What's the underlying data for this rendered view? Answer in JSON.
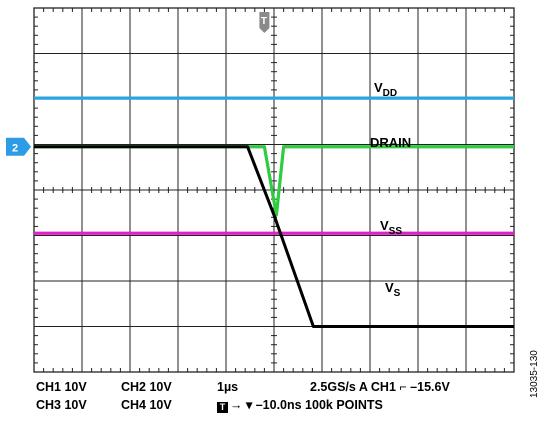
{
  "chart_data": {
    "type": "line",
    "grid": true,
    "grid_divisions": {
      "x": 10,
      "y": 8
    },
    "x_unit_per_div": "1µs",
    "trigger_marker": "T",
    "channel_marker": "2",
    "colors": {
      "vdd": "#2aa5e0",
      "drain": "#2ecc40",
      "vss": "#e020c8",
      "vs": "#000000",
      "grid": "#222222",
      "marker": "#2e9be6"
    },
    "series": [
      {
        "name": "VDD",
        "label_main": "V",
        "label_sub": "DD",
        "color": "#2aa5e0",
        "points": [
          [
            0,
            6.02
          ],
          [
            10,
            6.02
          ]
        ]
      },
      {
        "name": "DRAIN",
        "label_main": "DRAIN",
        "label_sub": "",
        "color": "#2ecc40",
        "points": [
          [
            0,
            4.95
          ],
          [
            4.8,
            4.95
          ],
          [
            5.05,
            3.45
          ],
          [
            5.2,
            4.95
          ],
          [
            10,
            4.95
          ]
        ]
      },
      {
        "name": "VSS",
        "label_main": "V",
        "label_sub": "SS",
        "color": "#e020c8",
        "points": [
          [
            0,
            3.05
          ],
          [
            10,
            3.05
          ]
        ]
      },
      {
        "name": "VS",
        "label_main": "V",
        "label_sub": "S",
        "color": "#000000",
        "points": [
          [
            0,
            4.95
          ],
          [
            4.45,
            4.95
          ],
          [
            5.0,
            3.45
          ],
          [
            5.82,
            1.0
          ],
          [
            10,
            1.0
          ]
        ]
      }
    ]
  },
  "status": {
    "row1": {
      "ch1": "CH1  10V",
      "ch2": "CH2  10V",
      "timebase": "1µs",
      "trigger": "2.5GS/s   A  CH1  ⌐  –15.6V"
    },
    "row2": {
      "ch3": "CH3  10V",
      "ch4": "CH4  10V",
      "t_box": "T",
      "position": "→ ▾ –10.0ns 100k POINTS"
    }
  },
  "figure_id": "13035-130"
}
